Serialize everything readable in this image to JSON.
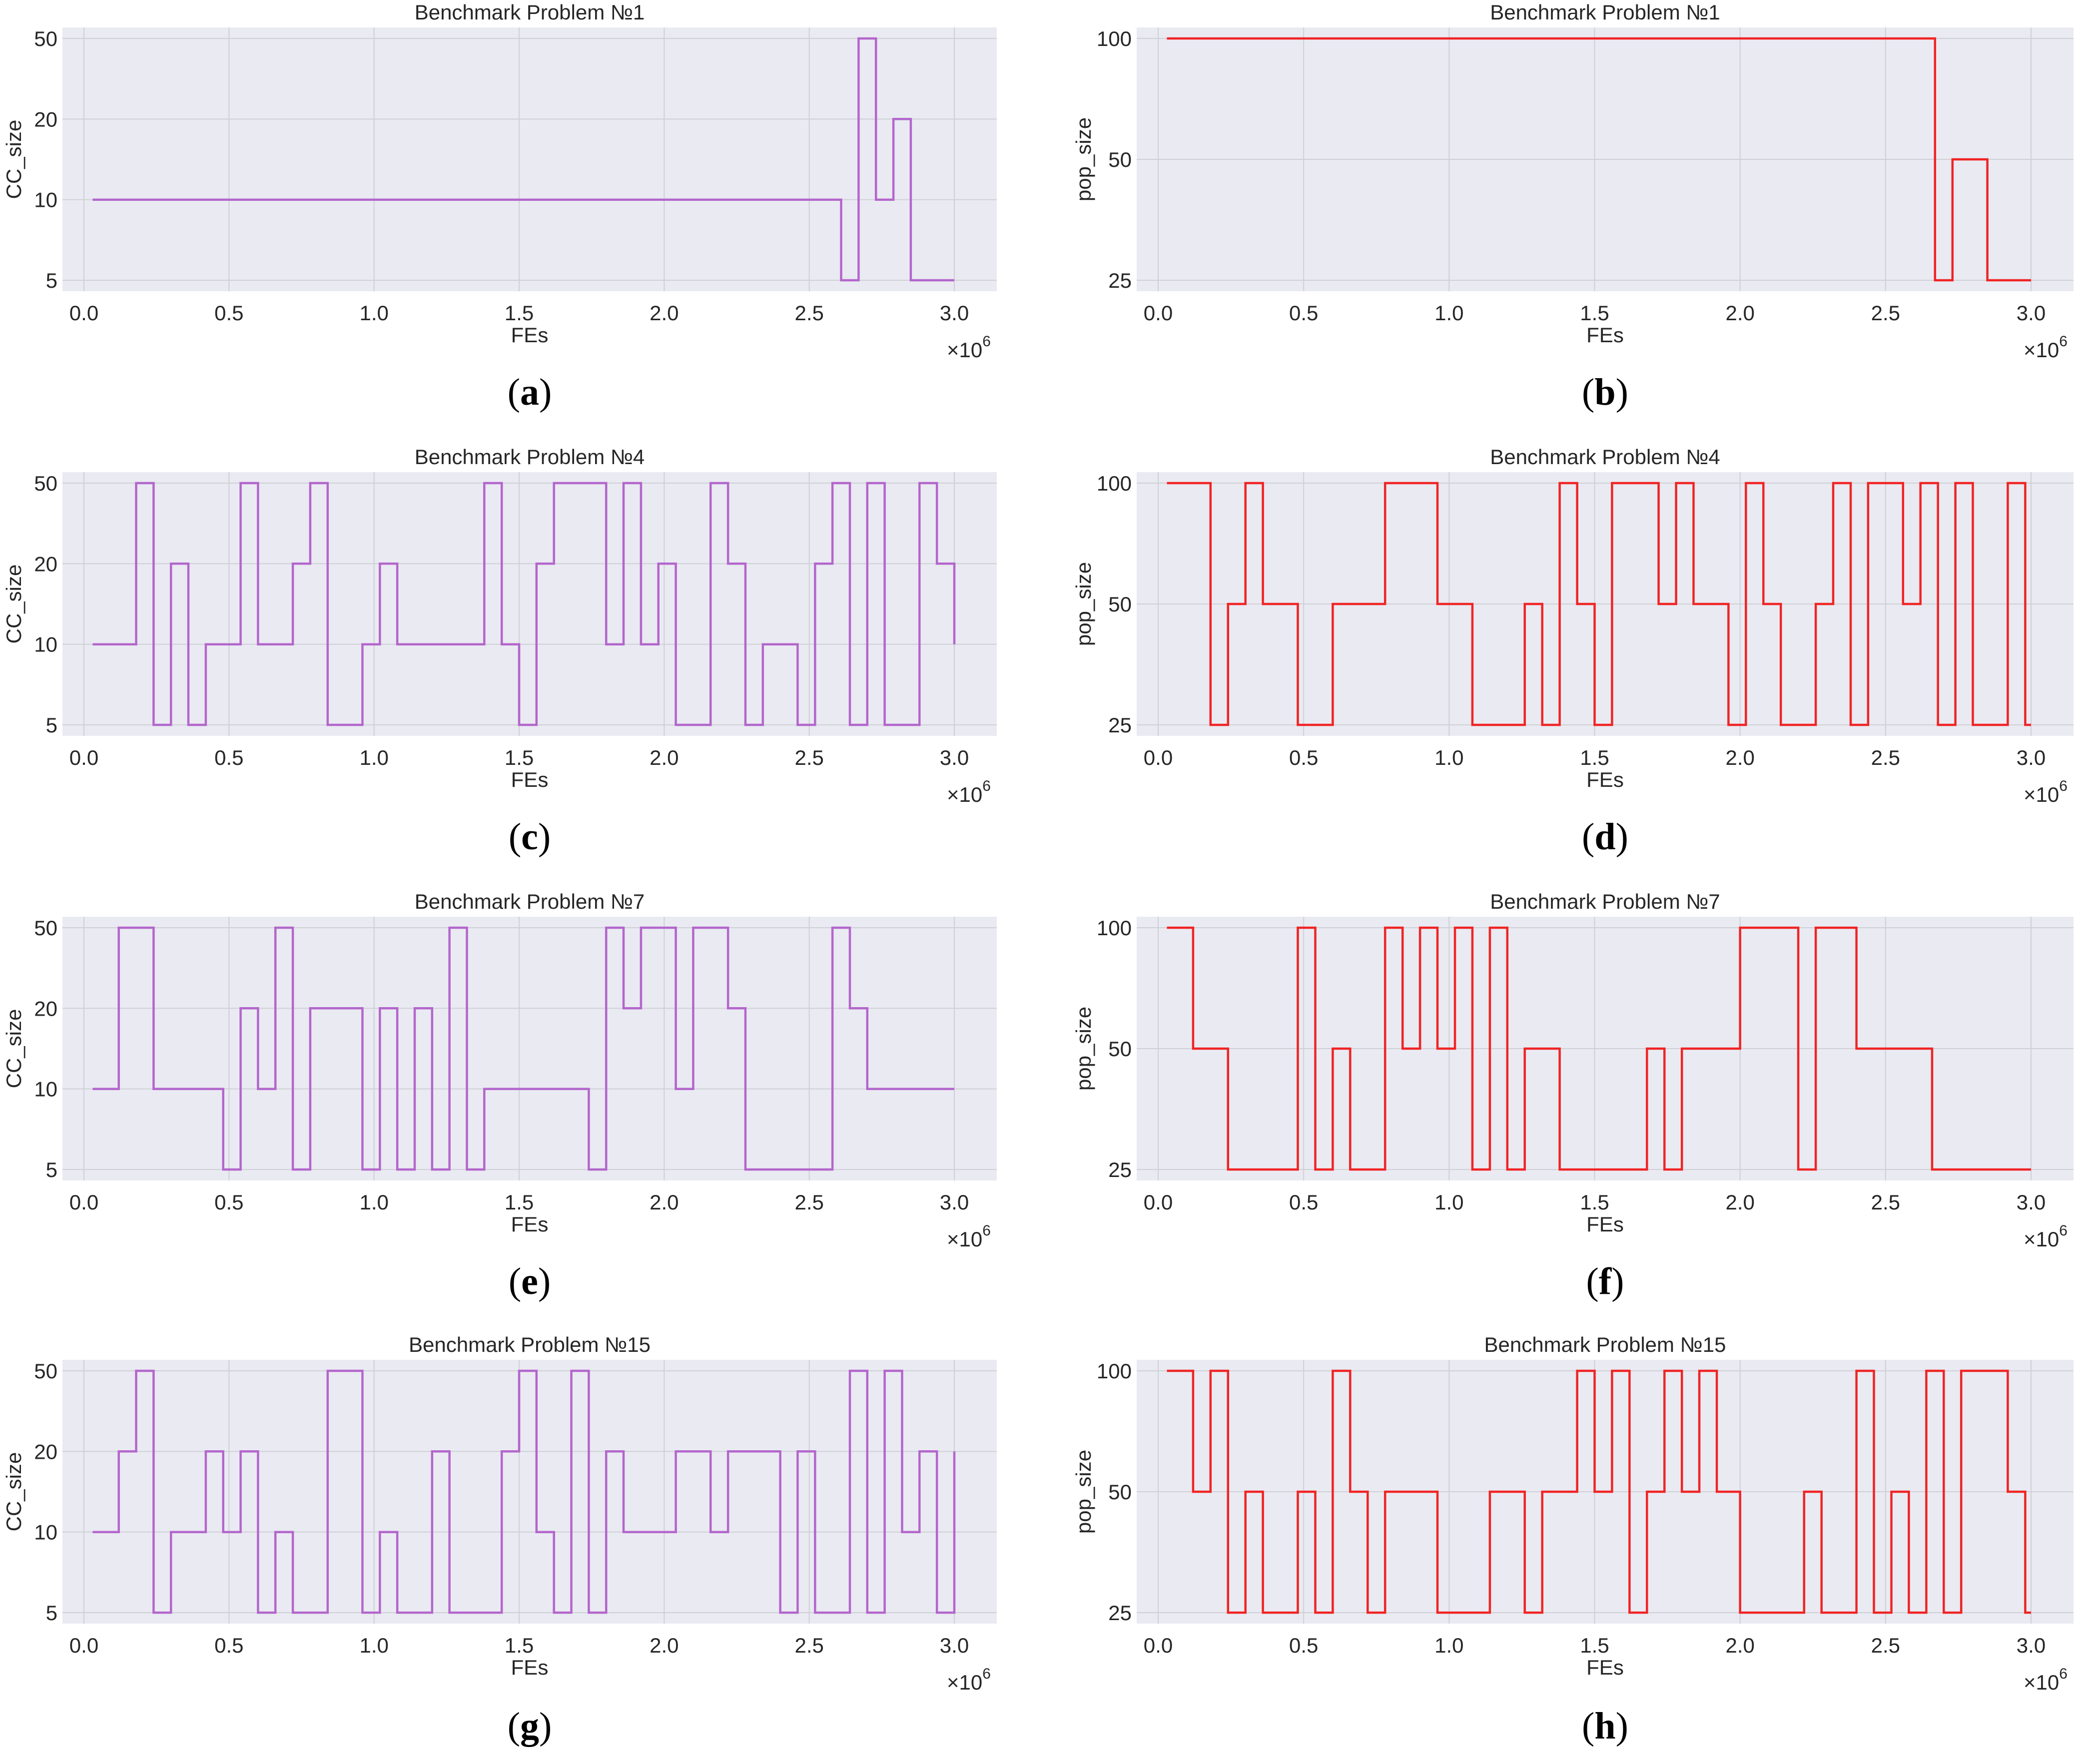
{
  "chart_data": [
    {
      "id": "a",
      "caption": "a",
      "type": "line",
      "step": true,
      "title": "Benchmark Problem №1",
      "xlabel": "FEs",
      "ylabel": "CC_size",
      "xlim": [
        0,
        3000000
      ],
      "x_multiplier": "×10",
      "x_multiplier_exp": "6",
      "x_ticks": [
        "0.0",
        "0.5",
        "1.0",
        "1.5",
        "2.0",
        "2.5",
        "3.0"
      ],
      "y_levels": [
        5,
        10,
        20,
        50
      ],
      "y_ticks": [
        "5",
        "10",
        "20",
        "50"
      ],
      "color": "#b366cc",
      "series": [
        {
          "name": "CC_size",
          "x": [
            30000,
            2610000,
            2670000,
            2730000,
            2790000,
            2850000,
            3000000
          ],
          "y": [
            10,
            5,
            50,
            10,
            20,
            5,
            5
          ]
        }
      ]
    },
    {
      "id": "b",
      "caption": "b",
      "type": "line",
      "step": true,
      "title": "Benchmark Problem №1",
      "xlabel": "FEs",
      "ylabel": "pop_size",
      "xlim": [
        0,
        3000000
      ],
      "x_multiplier": "×10",
      "x_multiplier_exp": "6",
      "x_ticks": [
        "0.0",
        "0.5",
        "1.0",
        "1.5",
        "2.0",
        "2.5",
        "3.0"
      ],
      "y_levels": [
        25,
        50,
        100
      ],
      "y_ticks": [
        "25",
        "50",
        "100"
      ],
      "color": "#f02424",
      "series": [
        {
          "name": "pop_size",
          "x": [
            30000,
            2670000,
            2730000,
            2850000,
            3000000
          ],
          "y": [
            100,
            25,
            50,
            25,
            25
          ]
        }
      ]
    },
    {
      "id": "c",
      "caption": "c",
      "type": "line",
      "step": true,
      "title": "Benchmark Problem №4",
      "xlabel": "FEs",
      "ylabel": "CC_size",
      "xlim": [
        0,
        3000000
      ],
      "x_multiplier": "×10",
      "x_multiplier_exp": "6",
      "x_ticks": [
        "0.0",
        "0.5",
        "1.0",
        "1.5",
        "2.0",
        "2.5",
        "3.0"
      ],
      "y_levels": [
        5,
        10,
        20,
        50
      ],
      "y_ticks": [
        "5",
        "10",
        "20",
        "50"
      ],
      "color": "#b366cc",
      "series": [
        {
          "name": "CC_size",
          "x": [
            30000,
            180000,
            240000,
            300000,
            360000,
            420000,
            540000,
            600000,
            720000,
            780000,
            840000,
            960000,
            1020000,
            1080000,
            1380000,
            1440000,
            1500000,
            1560000,
            1620000,
            1800000,
            1860000,
            1920000,
            1980000,
            2040000,
            2160000,
            2220000,
            2280000,
            2340000,
            2460000,
            2520000,
            2580000,
            2640000,
            2700000,
            2760000,
            2880000,
            2940000,
            3000000
          ],
          "y": [
            10,
            50,
            5,
            20,
            5,
            10,
            50,
            10,
            20,
            50,
            5,
            10,
            20,
            10,
            50,
            10,
            5,
            20,
            50,
            10,
            50,
            10,
            20,
            5,
            50,
            20,
            5,
            10,
            5,
            20,
            50,
            5,
            50,
            5,
            50,
            20,
            10
          ]
        }
      ]
    },
    {
      "id": "d",
      "caption": "d",
      "type": "line",
      "step": true,
      "title": "Benchmark Problem №4",
      "xlabel": "FEs",
      "ylabel": "pop_size",
      "xlim": [
        0,
        3000000
      ],
      "x_multiplier": "×10",
      "x_multiplier_exp": "6",
      "x_ticks": [
        "0.0",
        "0.5",
        "1.0",
        "1.5",
        "2.0",
        "2.5",
        "3.0"
      ],
      "y_levels": [
        25,
        50,
        100
      ],
      "y_ticks": [
        "25",
        "50",
        "100"
      ],
      "color": "#f02424",
      "series": [
        {
          "name": "pop_size",
          "x": [
            30000,
            180000,
            240000,
            300000,
            360000,
            480000,
            600000,
            780000,
            960000,
            1080000,
            1260000,
            1320000,
            1380000,
            1440000,
            1500000,
            1560000,
            1720000,
            1780000,
            1840000,
            1960000,
            2020000,
            2080000,
            2140000,
            2260000,
            2320000,
            2380000,
            2440000,
            2560000,
            2620000,
            2680000,
            2740000,
            2800000,
            2920000,
            2980000,
            3000000
          ],
          "y": [
            100,
            25,
            50,
            100,
            50,
            25,
            50,
            100,
            50,
            25,
            50,
            25,
            100,
            50,
            25,
            100,
            50,
            100,
            50,
            25,
            100,
            50,
            25,
            50,
            100,
            25,
            100,
            50,
            100,
            25,
            100,
            25,
            100,
            25,
            25
          ]
        }
      ]
    },
    {
      "id": "e",
      "caption": "e",
      "type": "line",
      "step": true,
      "title": "Benchmark Problem №7",
      "xlabel": "FEs",
      "ylabel": "CC_size",
      "xlim": [
        0,
        3000000
      ],
      "x_multiplier": "×10",
      "x_multiplier_exp": "6",
      "x_ticks": [
        "0.0",
        "0.5",
        "1.0",
        "1.5",
        "2.0",
        "2.5",
        "3.0"
      ],
      "y_levels": [
        5,
        10,
        20,
        50
      ],
      "y_ticks": [
        "5",
        "10",
        "20",
        "50"
      ],
      "color": "#b366cc",
      "series": [
        {
          "name": "CC_size",
          "x": [
            30000,
            120000,
            240000,
            480000,
            540000,
            600000,
            660000,
            720000,
            780000,
            960000,
            1020000,
            1080000,
            1140000,
            1200000,
            1260000,
            1320000,
            1380000,
            1740000,
            1800000,
            1860000,
            1920000,
            2040000,
            2100000,
            2220000,
            2280000,
            2340000,
            2580000,
            2640000,
            2700000,
            3000000
          ],
          "y": [
            10,
            50,
            10,
            5,
            20,
            10,
            50,
            5,
            20,
            5,
            20,
            5,
            20,
            5,
            50,
            5,
            10,
            5,
            50,
            20,
            50,
            10,
            50,
            20,
            5,
            5,
            50,
            20,
            10,
            10
          ]
        }
      ]
    },
    {
      "id": "f",
      "caption": "f",
      "type": "line",
      "step": true,
      "title": "Benchmark Problem №7",
      "xlabel": "FEs",
      "ylabel": "pop_size",
      "xlim": [
        0,
        3000000
      ],
      "x_multiplier": "×10",
      "x_multiplier_exp": "6",
      "x_ticks": [
        "0.0",
        "0.5",
        "1.0",
        "1.5",
        "2.0",
        "2.5",
        "3.0"
      ],
      "y_levels": [
        25,
        50,
        100
      ],
      "y_ticks": [
        "25",
        "50",
        "100"
      ],
      "color": "#f02424",
      "series": [
        {
          "name": "pop_size",
          "x": [
            30000,
            120000,
            240000,
            480000,
            540000,
            600000,
            660000,
            780000,
            840000,
            900000,
            960000,
            1020000,
            1080000,
            1140000,
            1200000,
            1260000,
            1380000,
            1680000,
            1740000,
            1800000,
            2000000,
            2200000,
            2260000,
            2400000,
            2660000,
            3000000
          ],
          "y": [
            100,
            50,
            25,
            100,
            25,
            50,
            25,
            100,
            50,
            100,
            50,
            100,
            25,
            100,
            25,
            50,
            25,
            50,
            25,
            50,
            100,
            25,
            100,
            50,
            25,
            25
          ]
        }
      ]
    },
    {
      "id": "g",
      "caption": "g",
      "type": "line",
      "step": true,
      "title": "Benchmark Problem №15",
      "xlabel": "FEs",
      "ylabel": "CC_size",
      "xlim": [
        0,
        3000000
      ],
      "x_multiplier": "×10",
      "x_multiplier_exp": "6",
      "x_ticks": [
        "0.0",
        "0.5",
        "1.0",
        "1.5",
        "2.0",
        "2.5",
        "3.0"
      ],
      "y_levels": [
        5,
        10,
        20,
        50
      ],
      "y_ticks": [
        "5",
        "10",
        "20",
        "50"
      ],
      "color": "#b366cc",
      "series": [
        {
          "name": "CC_size",
          "x": [
            30000,
            120000,
            180000,
            240000,
            300000,
            420000,
            480000,
            540000,
            600000,
            660000,
            720000,
            840000,
            960000,
            1020000,
            1080000,
            1200000,
            1260000,
            1440000,
            1500000,
            1560000,
            1620000,
            1680000,
            1740000,
            1800000,
            1860000,
            2040000,
            2160000,
            2220000,
            2340000,
            2400000,
            2460000,
            2520000,
            2640000,
            2700000,
            2760000,
            2820000,
            2880000,
            2940000,
            3000000
          ],
          "y": [
            10,
            20,
            50,
            5,
            10,
            20,
            10,
            20,
            5,
            10,
            5,
            50,
            5,
            10,
            5,
            20,
            5,
            20,
            50,
            10,
            5,
            50,
            5,
            20,
            10,
            20,
            10,
            20,
            20,
            5,
            20,
            5,
            50,
            5,
            50,
            10,
            20,
            5,
            20
          ]
        }
      ]
    },
    {
      "id": "h",
      "caption": "h",
      "type": "line",
      "step": true,
      "title": "Benchmark Problem №15",
      "xlabel": "FEs",
      "ylabel": "pop_size",
      "xlim": [
        0,
        3000000
      ],
      "x_multiplier": "×10",
      "x_multiplier_exp": "6",
      "x_ticks": [
        "0.0",
        "0.5",
        "1.0",
        "1.5",
        "2.0",
        "2.5",
        "3.0"
      ],
      "y_levels": [
        25,
        50,
        100
      ],
      "y_ticks": [
        "25",
        "50",
        "100"
      ],
      "color": "#f02424",
      "series": [
        {
          "name": "pop_size",
          "x": [
            30000,
            120000,
            180000,
            240000,
            300000,
            360000,
            480000,
            540000,
            600000,
            660000,
            720000,
            780000,
            960000,
            1140000,
            1260000,
            1320000,
            1440000,
            1500000,
            1560000,
            1620000,
            1680000,
            1740000,
            1800000,
            1860000,
            1920000,
            2000000,
            2220000,
            2280000,
            2400000,
            2460000,
            2520000,
            2580000,
            2640000,
            2700000,
            2760000,
            2920000,
            2980000,
            3000000
          ],
          "y": [
            100,
            50,
            100,
            25,
            50,
            25,
            50,
            25,
            100,
            50,
            25,
            50,
            25,
            50,
            25,
            50,
            100,
            50,
            100,
            25,
            50,
            100,
            50,
            100,
            50,
            25,
            50,
            25,
            100,
            25,
            50,
            25,
            100,
            25,
            100,
            50,
            25,
            25
          ]
        }
      ]
    }
  ]
}
